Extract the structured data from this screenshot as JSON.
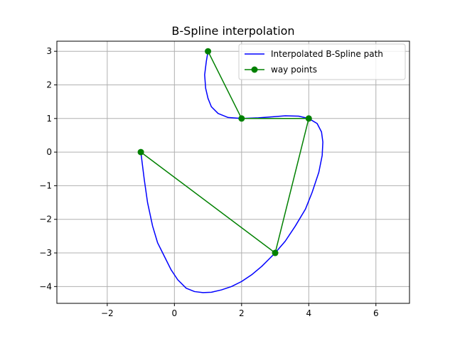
{
  "chart_data": {
    "type": "line",
    "title": "B-Spline interpolation",
    "xlabel": "",
    "ylabel": "",
    "xlim": [
      -3.5,
      7.0
    ],
    "ylim": [
      -4.5,
      3.3
    ],
    "xticks": [
      -2,
      0,
      2,
      4,
      6
    ],
    "yticks": [
      -4,
      -3,
      -2,
      -1,
      0,
      1,
      2,
      3
    ],
    "xtick_labels": [
      "−2",
      "0",
      "2",
      "4",
      "6"
    ],
    "ytick_labels": [
      "−4",
      "−3",
      "−2",
      "−1",
      "0",
      "1",
      "2",
      "3"
    ],
    "grid": true,
    "legend_position": "upper right",
    "series": [
      {
        "name": "Interpolated B-Spline path",
        "color": "#0000ff",
        "marker": "none",
        "x": [
          -1.0,
          -0.9,
          -0.8,
          -0.65,
          -0.5,
          -0.3,
          -0.1,
          0.1,
          0.35,
          0.6,
          0.85,
          1.1,
          1.4,
          1.7,
          2.0,
          2.3,
          2.6,
          2.85,
          3.0,
          3.3,
          3.6,
          3.9,
          4.1,
          4.3,
          4.4,
          4.42,
          4.38,
          4.25,
          4.0,
          3.7,
          3.3,
          2.9,
          2.5,
          2.0,
          1.6,
          1.3,
          1.1,
          1.0,
          0.93,
          0.9,
          0.95,
          1.0
        ],
        "y": [
          0.0,
          -0.8,
          -1.5,
          -2.2,
          -2.7,
          -3.1,
          -3.5,
          -3.8,
          -4.05,
          -4.15,
          -4.18,
          -4.17,
          -4.1,
          -4.0,
          -3.85,
          -3.65,
          -3.4,
          -3.15,
          -3.0,
          -2.65,
          -2.2,
          -1.7,
          -1.2,
          -0.6,
          -0.1,
          0.3,
          0.6,
          0.85,
          1.0,
          1.07,
          1.08,
          1.05,
          1.02,
          1.0,
          1.03,
          1.15,
          1.35,
          1.6,
          1.9,
          2.3,
          2.7,
          3.0
        ]
      },
      {
        "name": "way points",
        "color": "#008000",
        "marker": "circle",
        "x": [
          -1,
          3,
          4,
          2,
          1
        ],
        "y": [
          0,
          -3,
          1,
          1,
          3
        ]
      }
    ]
  }
}
